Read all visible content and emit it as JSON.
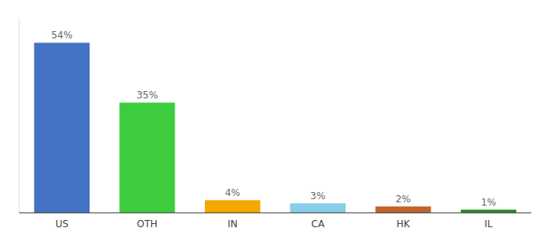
{
  "chart_data": {
    "type": "bar",
    "categories": [
      "US",
      "OTH",
      "IN",
      "CA",
      "HK",
      "IL"
    ],
    "values": [
      54,
      35,
      4,
      3,
      2,
      1
    ],
    "value_labels": [
      "54%",
      "35%",
      "4%",
      "3%",
      "2%",
      "1%"
    ],
    "colors": [
      "#4472c4",
      "#3dcc3d",
      "#f5a800",
      "#87ceeb",
      "#c0622a",
      "#2a8c2a"
    ],
    "ylim": [
      0,
      62
    ],
    "data_labels": true,
    "tick_labels": "x",
    "grid": false
  }
}
